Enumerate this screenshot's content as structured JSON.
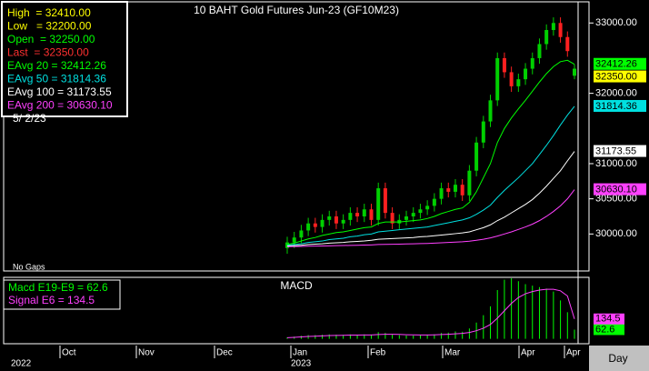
{
  "chart_data": [
    {
      "type": "candlestick",
      "title": "10 BAHT Gold Futures Jun-23 (GF10M23)",
      "note": "No Gaps",
      "info": [
        {
          "text": "High  = 32410.00",
          "color": "#ffff00"
        },
        {
          "text": "Low   = 32200.00",
          "color": "#ffff00"
        },
        {
          "text": "Open  = 32250.00",
          "color": "#00ff00"
        },
        {
          "text": "Last  = 32350.00",
          "color": "#ff3030"
        }
      ],
      "date": "5/ 2/23",
      "open": [
        29800,
        29880,
        29950,
        30050,
        30150,
        30100,
        30200,
        30250,
        30150,
        30200,
        30300,
        30250,
        30350,
        30200,
        30650,
        30300,
        30150,
        30200,
        30250,
        30300,
        30350,
        30400,
        30500,
        30650,
        30600,
        30700,
        30550,
        30900,
        31300,
        31600,
        31900,
        32500,
        32300,
        32100,
        32200,
        32350,
        32500,
        32700,
        32900,
        33000,
        32800,
        32250
      ],
      "high": [
        29960,
        30030,
        30130,
        30230,
        30230,
        30280,
        30330,
        30330,
        30280,
        30380,
        30380,
        30430,
        30430,
        30730,
        30730,
        30380,
        30280,
        30330,
        30380,
        30430,
        30480,
        30580,
        30730,
        30730,
        30780,
        30780,
        30980,
        31380,
        31680,
        31980,
        32580,
        32580,
        32380,
        32280,
        32430,
        32580,
        32780,
        32980,
        33080,
        33080,
        32880,
        32410
      ],
      "low": [
        29720,
        29800,
        29870,
        29970,
        30020,
        30020,
        30120,
        30070,
        30070,
        30120,
        30170,
        30170,
        30120,
        30120,
        30220,
        30070,
        30070,
        30120,
        30170,
        30220,
        30270,
        30320,
        30420,
        30520,
        30520,
        30470,
        30470,
        30820,
        31220,
        31520,
        31820,
        32220,
        32020,
        32020,
        32120,
        32270,
        32420,
        32620,
        32820,
        32720,
        32520,
        32200
      ],
      "close": [
        29880,
        29950,
        30050,
        30150,
        30100,
        30200,
        30250,
        30150,
        30200,
        30300,
        30250,
        30350,
        30200,
        30650,
        30300,
        30150,
        30200,
        30250,
        30300,
        30350,
        30400,
        30500,
        30650,
        30600,
        30700,
        30550,
        30900,
        31300,
        31600,
        31900,
        32500,
        32300,
        32100,
        32200,
        32350,
        32500,
        32700,
        32900,
        33000,
        32800,
        32600,
        32350
      ],
      "up_color": "#00d000",
      "down_color": "#ff2020",
      "last_tag": {
        "label": "32350.00",
        "color": "#ffff00"
      },
      "series": [
        {
          "name": "EAvg 20 = 32412.26",
          "color": "#00ff00",
          "tag": "32412.26",
          "values": [
            29850,
            29870,
            29900,
            29930,
            29950,
            29980,
            30000,
            30020,
            30030,
            30050,
            30070,
            30090,
            30100,
            30150,
            30170,
            30170,
            30170,
            30180,
            30190,
            30200,
            30220,
            30250,
            30290,
            30320,
            30350,
            30370,
            30450,
            30600,
            30800,
            31000,
            31300,
            31500,
            31650,
            31780,
            31900,
            32030,
            32160,
            32280,
            32380,
            32450,
            32470,
            32412.26
          ]
        },
        {
          "name": "EAvg 50 = 31814.36",
          "color": "#00e0e0",
          "tag": "31814.36",
          "values": [
            29840,
            29850,
            29860,
            29880,
            29890,
            29900,
            29920,
            29930,
            29940,
            29960,
            29970,
            29990,
            30000,
            30030,
            30040,
            30050,
            30060,
            30070,
            30080,
            30090,
            30100,
            30120,
            30140,
            30160,
            30180,
            30200,
            30230,
            30280,
            30340,
            30410,
            30520,
            30620,
            30710,
            30800,
            30900,
            31000,
            31130,
            31260,
            31400,
            31550,
            31690,
            31814.36
          ]
        },
        {
          "name": "EAvg 100 = 31173.55",
          "color": "#ffffff",
          "tag": "31173.55",
          "values": [
            29830,
            29835,
            29840,
            29850,
            29855,
            29860,
            29870,
            29875,
            29880,
            29890,
            29895,
            29900,
            29910,
            29925,
            29930,
            29935,
            29940,
            29945,
            29950,
            29960,
            29965,
            29975,
            29985,
            29995,
            30005,
            30015,
            30030,
            30060,
            30090,
            30130,
            30190,
            30240,
            30300,
            30360,
            30420,
            30490,
            30580,
            30680,
            30790,
            30900,
            31040,
            31173.55
          ]
        },
        {
          "name": "EAvg 200 = 30630.10",
          "color": "#ff40ff",
          "tag": "30630.10",
          "values": [
            29820,
            29822,
            29824,
            29826,
            29828,
            29830,
            29832,
            29834,
            29836,
            29838,
            29840,
            29842,
            29845,
            29850,
            29852,
            29854,
            29856,
            29858,
            29860,
            29863,
            29866,
            29870,
            29875,
            29880,
            29885,
            29890,
            29898,
            29910,
            29925,
            29945,
            29970,
            30000,
            30030,
            30065,
            30100,
            30140,
            30190,
            30250,
            30320,
            30400,
            30500,
            30630.1
          ]
        }
      ],
      "ylim": [
        29500,
        33275
      ],
      "yticks": [
        {
          "value": 33000,
          "label": "33000.00"
        },
        {
          "value": 32000,
          "label": "32000.00"
        },
        {
          "value": 31000,
          "label": "31000.00"
        },
        {
          "value": 30500,
          "label": "30500.00"
        },
        {
          "value": 30000,
          "label": "30000.00"
        }
      ]
    },
    {
      "type": "macd",
      "title": "MACD",
      "series": [
        {
          "name": "Macd E19-E9 = 62.6",
          "color": "#00ff00",
          "values": [
            10,
            15,
            20,
            25,
            25,
            28,
            30,
            28,
            27,
            30,
            28,
            30,
            25,
            45,
            40,
            30,
            25,
            22,
            22,
            24,
            26,
            30,
            40,
            42,
            50,
            48,
            70,
            110,
            160,
            220,
            330,
            400,
            410,
            390,
            370,
            360,
            350,
            340,
            320,
            260,
            180,
            62.6
          ]
        },
        {
          "name": "Signal E6 = 134.5",
          "color": "#ff40ff",
          "values": [
            8,
            10,
            13,
            16,
            18,
            20,
            22,
            23,
            24,
            25,
            25,
            26,
            26,
            29,
            31,
            31,
            30,
            28,
            27,
            26,
            26,
            27,
            29,
            31,
            34,
            37,
            43,
            55,
            72,
            97,
            140,
            190,
            240,
            280,
            305,
            320,
            330,
            335,
            335,
            325,
            290,
            134.5
          ]
        }
      ],
      "ylim": [
        -27,
        410
      ]
    },
    {
      "type": "date_axis",
      "months": [
        "Oct",
        "Nov",
        "Dec",
        "Jan",
        "Feb",
        "Mar",
        "Apr",
        "Apr"
      ],
      "years": [
        "2022",
        "2023"
      ],
      "period": "Day"
    }
  ]
}
